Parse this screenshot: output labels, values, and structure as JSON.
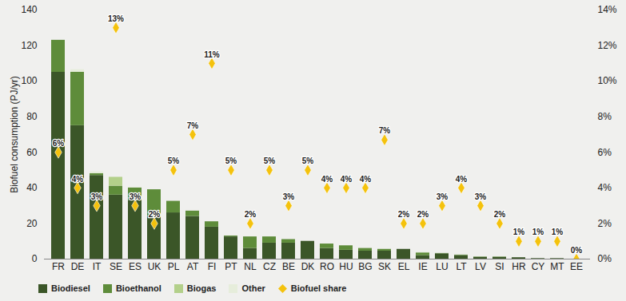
{
  "chart_data": {
    "type": "bar",
    "stacked": true,
    "grid": false,
    "legend": "bottom",
    "y_label": "Biofuel consumption (PJ/yr)",
    "categories": [
      "FR",
      "DE",
      "IT",
      "SE",
      "ES",
      "UK",
      "PL",
      "AT",
      "FI",
      "PT",
      "NL",
      "CZ",
      "BE",
      "DK",
      "RO",
      "HU",
      "BG",
      "SK",
      "EL",
      "IE",
      "LU",
      "LT",
      "LV",
      "SI",
      "HR",
      "CY",
      "MT",
      "EE"
    ],
    "ylim": [
      0,
      140
    ],
    "yticks": [
      0,
      20,
      40,
      60,
      80,
      100,
      120,
      140
    ],
    "y2lim": [
      0,
      14
    ],
    "y2ticks": [
      {
        "value": 0,
        "label": "0%"
      },
      {
        "value": 2,
        "label": "2%"
      },
      {
        "value": 4,
        "label": "4%"
      },
      {
        "value": 6,
        "label": "6%"
      },
      {
        "value": 8,
        "label": "8%"
      },
      {
        "value": 10,
        "label": "10%"
      },
      {
        "value": 12,
        "label": "12%"
      },
      {
        "value": 14,
        "label": "14%"
      }
    ],
    "series": [
      {
        "name": "Biodiesel",
        "color": "#3b5628",
        "values": [
          105,
          75,
          47,
          36,
          33,
          24,
          26,
          24,
          18,
          12.5,
          6,
          9,
          9,
          10,
          6,
          5,
          4.5,
          4.5,
          5.5,
          2,
          3,
          2,
          1,
          1,
          0.8,
          0.3,
          0.3,
          0
        ]
      },
      {
        "name": "Bioethanol",
        "color": "#5e8c3a",
        "values": [
          18,
          30,
          1,
          5,
          7,
          15,
          6.5,
          3,
          3,
          0.5,
          6.5,
          3.5,
          2,
          0,
          2.5,
          2.5,
          1.5,
          1,
          0,
          1.5,
          0.2,
          0.3,
          0.2,
          0.2,
          0,
          0,
          0,
          0
        ]
      },
      {
        "name": "Biogas",
        "color": "#b3d08a",
        "values": [
          0,
          0,
          0,
          5,
          0,
          0,
          0,
          0,
          0,
          0,
          0,
          0,
          0,
          0,
          0,
          0,
          0,
          0,
          0,
          0,
          0,
          0,
          0,
          0,
          0,
          0,
          0,
          0
        ]
      },
      {
        "name": "Other",
        "color": "#e6eddb",
        "values": [
          0,
          1.5,
          1,
          0,
          0.3,
          0,
          0,
          0,
          0,
          0,
          0,
          0,
          0,
          0,
          0,
          0,
          0,
          0,
          0,
          0.3,
          0,
          0,
          0,
          0,
          0,
          0,
          0,
          0
        ]
      },
      {
        "name": "Biofuel share",
        "type": "scatter",
        "axis": "y2",
        "marker": "diamond",
        "color": "#f4c20d",
        "data_labels": true,
        "values": [
          6,
          4,
          3,
          13,
          3,
          2,
          5,
          7,
          11,
          5,
          2,
          5,
          3,
          5,
          4,
          4,
          4,
          6.7,
          2,
          2,
          3,
          4,
          3,
          2,
          1,
          1,
          1,
          0
        ],
        "value_labels": [
          "6%",
          "4%",
          "3%",
          "13%",
          "3%",
          "2%",
          "5%",
          "7%",
          "11%",
          "5%",
          "2%",
          "5%",
          "3%",
          "5%",
          "4%",
          "4%",
          "4%",
          "7%",
          "2%",
          "2%",
          "3%",
          "4%",
          "3%",
          "2%",
          "1%",
          "1%",
          "1%",
          "0%"
        ]
      }
    ]
  }
}
